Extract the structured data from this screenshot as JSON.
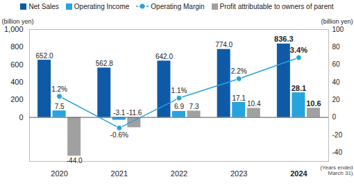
{
  "chart_data": {
    "type": "bar",
    "categories": [
      "2020",
      "2021",
      "2022",
      "2023",
      "2024"
    ],
    "y_label": "(billion yen)",
    "y2_label": "(billion yen)",
    "annotations": [
      "(Years ended March 31)"
    ],
    "series": [
      {
        "name": "Net Sales",
        "color": "#0e5aa7",
        "values": [
          652.0,
          562.8,
          642.0,
          774.0,
          836.3
        ],
        "value_labels": [
          "652.0",
          "562.8",
          "642.0",
          "774.0",
          "836.3"
        ]
      },
      {
        "name": "Operating Income",
        "color": "#27a3dd",
        "axis": "y2",
        "values": [
          7.5,
          -3.1,
          6.9,
          17.1,
          28.1
        ],
        "value_labels": [
          "7.5",
          "-3.1",
          "6.9",
          "17.1",
          "28.1"
        ]
      },
      {
        "name": "Operating Margin",
        "type": "line",
        "marker": "circle",
        "color": "#27a3dd",
        "axis": "y3",
        "values": [
          1.2,
          -0.6,
          1.1,
          2.2,
          3.4
        ],
        "value_labels": [
          "1.2%",
          "-0.6%",
          "1.1%",
          "2.2%",
          "3.4%"
        ]
      },
      {
        "name": "Profit attributable to owners of parent",
        "color": "#a0a0a0",
        "axis": "y2",
        "values": [
          -44.0,
          -11.6,
          7.3,
          10.4,
          10.6
        ],
        "value_labels": [
          "-44.0",
          "-11.6",
          "7.3",
          "10.4",
          "10.6"
        ]
      }
    ],
    "ylim": [
      -500,
      1000
    ],
    "yticks": [
      0,
      200,
      400,
      600,
      800,
      {
        "value": 1000,
        "label": "1,000"
      }
    ],
    "y2lim": [
      -50,
      100
    ],
    "y2ticks": [
      -40,
      -20,
      0,
      20,
      40,
      60,
      80,
      100
    ],
    "y3lim": [
      -2.5,
      5
    ],
    "data_labels": true,
    "legend": "top",
    "grid": false
  }
}
